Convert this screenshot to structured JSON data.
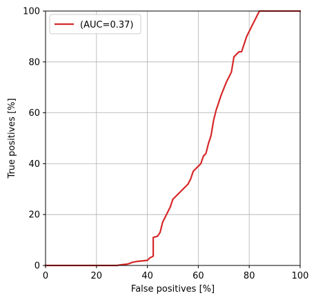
{
  "chart_data": {
    "type": "line",
    "title": "",
    "xlabel": "False positives [%]",
    "ylabel": "True positives [%]",
    "xlim": [
      0,
      100
    ],
    "ylim": [
      0,
      100
    ],
    "xticks": [
      0,
      20,
      40,
      60,
      80,
      100
    ],
    "yticks": [
      0,
      20,
      40,
      60,
      80,
      100
    ],
    "xtick_labels": [
      "0",
      "20",
      "40",
      "60",
      "80",
      "100"
    ],
    "ytick_labels": [
      "0",
      "20",
      "40",
      "60",
      "80",
      "100"
    ],
    "grid": true,
    "legend_position": "top-left",
    "series": [
      {
        "name": "(AUC=0.37)",
        "color": "#d62728",
        "x": [
          0,
          28,
          30,
          32,
          33,
          34,
          36,
          38,
          40,
          41,
          42,
          42.3,
          42.3,
          44,
          45,
          46,
          47,
          48,
          49,
          50,
          51,
          52,
          53,
          54,
          55,
          56,
          57,
          58,
          59,
          60,
          61,
          62,
          63,
          64,
          65,
          66,
          67,
          68,
          69,
          70,
          71,
          72,
          73,
          74,
          75,
          76,
          77,
          78,
          79,
          80,
          81,
          82,
          83,
          84,
          85,
          100
        ],
        "y": [
          0,
          0,
          0.3,
          0.5,
          0.8,
          1.2,
          1.6,
          1.8,
          2,
          3,
          3.5,
          3.7,
          11,
          11.5,
          13,
          17,
          19,
          21,
          23,
          26,
          27,
          28,
          29,
          30,
          31,
          32,
          34,
          37,
          38,
          39,
          40,
          43,
          44,
          48,
          51,
          57,
          61,
          64,
          67,
          69.5,
          72,
          74,
          76,
          82,
          83,
          84,
          84,
          87,
          90,
          92,
          94,
          96,
          98,
          100,
          100,
          100
        ]
      }
    ]
  }
}
